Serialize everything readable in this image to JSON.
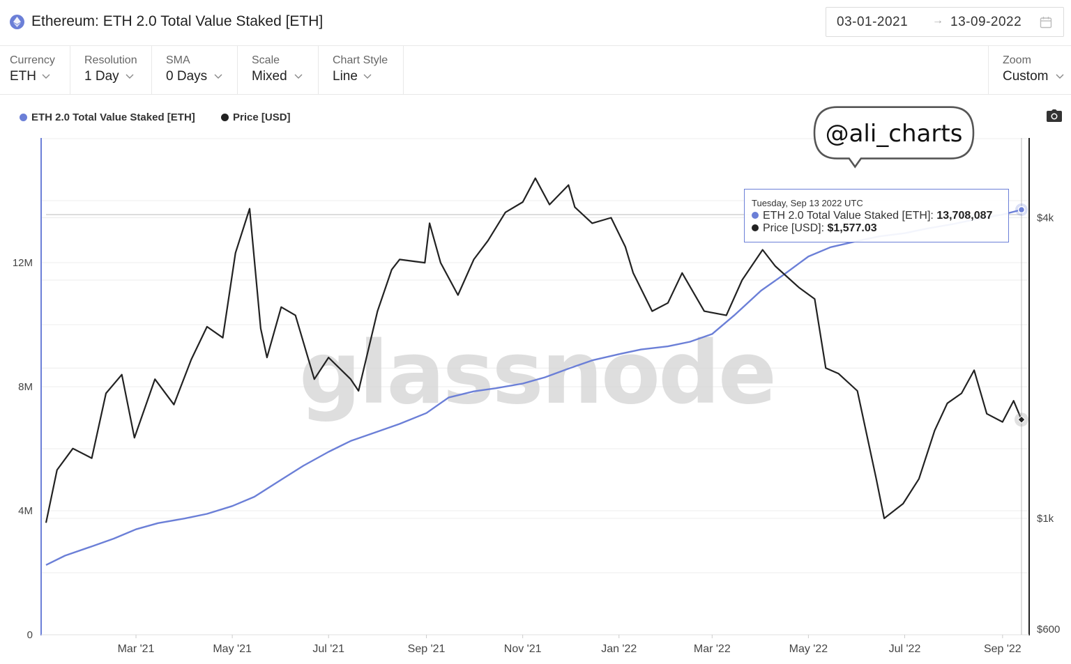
{
  "header": {
    "title": "Ethereum: ETH 2.0 Total Value Staked [ETH]",
    "date_from": "03-01-2021",
    "date_arrow": "→",
    "date_to": "13-09-2022"
  },
  "toolbar": {
    "currency": {
      "label": "Currency",
      "value": "ETH"
    },
    "resolution": {
      "label": "Resolution",
      "value": "1 Day"
    },
    "sma": {
      "label": "SMA",
      "value": "0 Days"
    },
    "scale": {
      "label": "Scale",
      "value": "Mixed"
    },
    "chart_style": {
      "label": "Chart Style",
      "value": "Line"
    },
    "zoom": {
      "label": "Zoom",
      "value": "Custom"
    }
  },
  "watermark": "glassnode",
  "annotation": "@ali_charts",
  "tooltip": {
    "date": "Tuesday, Sep 13 2022 UTC",
    "staked_label": "ETH 2.0 Total Value Staked [ETH]:",
    "staked_value": "13,708,087",
    "price_label": "Price [USD]:",
    "price_value": "$1,577.03"
  },
  "colors": {
    "staked": "#6b7fd7",
    "price": "#222222",
    "grid": "#ececec",
    "axis_left": "#6b7fd7",
    "axis_right": "#222222"
  },
  "chart_data": {
    "type": "line",
    "legend_position": "top-left",
    "grid": true,
    "x_tick_labels": [
      "Mar '21",
      "May '21",
      "Jul '21",
      "Sep '21",
      "Nov '21",
      "Jan '22",
      "Mar '22",
      "May '22",
      "Jul '22",
      "Sep '22"
    ],
    "left_axis": {
      "ticks": [
        "0",
        "4M",
        "8M",
        "12M"
      ],
      "ylim": [
        0,
        16000000
      ],
      "scale": "linear"
    },
    "right_axis": {
      "ticks": [
        "$600",
        "$1k",
        "$4k"
      ],
      "ylim": [
        600,
        5400
      ],
      "scale": "log"
    },
    "series": [
      {
        "name": "ETH 2.0 Total Value Staked [ETH]",
        "axis": "left",
        "x": [
          "2021-01-03",
          "2021-01-15",
          "2021-02-01",
          "2021-02-15",
          "2021-03-01",
          "2021-03-15",
          "2021-04-01",
          "2021-04-15",
          "2021-05-01",
          "2021-05-15",
          "2021-06-01",
          "2021-06-15",
          "2021-07-01",
          "2021-07-15",
          "2021-08-01",
          "2021-08-15",
          "2021-09-01",
          "2021-09-15",
          "2021-10-01",
          "2021-10-15",
          "2021-11-01",
          "2021-11-15",
          "2021-12-01",
          "2021-12-15",
          "2022-01-01",
          "2022-01-15",
          "2022-02-01",
          "2022-02-15",
          "2022-03-01",
          "2022-03-15",
          "2022-04-01",
          "2022-04-15",
          "2022-05-01",
          "2022-05-15",
          "2022-06-01",
          "2022-06-15",
          "2022-07-01",
          "2022-07-15",
          "2022-08-01",
          "2022-08-15",
          "2022-09-01",
          "2022-09-13"
        ],
        "values": [
          2250000,
          2550000,
          2850000,
          3100000,
          3400000,
          3600000,
          3750000,
          3900000,
          4150000,
          4450000,
          5000000,
          5450000,
          5900000,
          6250000,
          6550000,
          6800000,
          7150000,
          7650000,
          7850000,
          7950000,
          8100000,
          8300000,
          8600000,
          8850000,
          9050000,
          9200000,
          9300000,
          9450000,
          9700000,
          10300000,
          11100000,
          11600000,
          12200000,
          12500000,
          12700000,
          12850000,
          12950000,
          13100000,
          13250000,
          13400000,
          13550000,
          13708087
        ]
      },
      {
        "name": "Price [USD]",
        "axis": "right",
        "x": [
          "2021-01-03",
          "2021-01-10",
          "2021-01-20",
          "2021-02-01",
          "2021-02-10",
          "2021-02-20",
          "2021-02-28",
          "2021-03-13",
          "2021-03-25",
          "2021-04-05",
          "2021-04-15",
          "2021-04-25",
          "2021-05-03",
          "2021-05-12",
          "2021-05-19",
          "2021-05-23",
          "2021-06-01",
          "2021-06-10",
          "2021-06-22",
          "2021-07-01",
          "2021-07-15",
          "2021-07-20",
          "2021-08-01",
          "2021-08-10",
          "2021-08-15",
          "2021-08-31",
          "2021-09-03",
          "2021-09-10",
          "2021-09-21",
          "2021-10-01",
          "2021-10-10",
          "2021-10-21",
          "2021-11-01",
          "2021-11-09",
          "2021-11-18",
          "2021-11-30",
          "2021-12-04",
          "2021-12-15",
          "2021-12-27",
          "2022-01-05",
          "2022-01-10",
          "2022-01-22",
          "2022-02-01",
          "2022-02-10",
          "2022-02-24",
          "2022-03-10",
          "2022-03-20",
          "2022-04-02",
          "2022-04-10",
          "2022-04-25",
          "2022-05-05",
          "2022-05-12",
          "2022-05-20",
          "2022-06-01",
          "2022-06-13",
          "2022-06-18",
          "2022-06-30",
          "2022-07-10",
          "2022-07-20",
          "2022-07-28",
          "2022-08-06",
          "2022-08-14",
          "2022-08-22",
          "2022-09-01",
          "2022-09-08",
          "2022-09-13"
        ],
        "values": [
          980,
          1250,
          1380,
          1320,
          1780,
          1940,
          1450,
          1900,
          1690,
          2080,
          2420,
          2300,
          3400,
          4170,
          2400,
          2100,
          2650,
          2550,
          1900,
          2100,
          1900,
          1800,
          2600,
          3150,
          3300,
          3250,
          3900,
          3250,
          2800,
          3300,
          3600,
          4100,
          4300,
          4800,
          4250,
          4650,
          4200,
          3900,
          4000,
          3500,
          3100,
          2600,
          2700,
          3100,
          2600,
          2550,
          3000,
          3450,
          3200,
          2900,
          2750,
          2000,
          1950,
          1800,
          1200,
          1000,
          1070,
          1200,
          1500,
          1700,
          1780,
          1980,
          1620,
          1560,
          1720,
          1577
        ]
      }
    ]
  }
}
